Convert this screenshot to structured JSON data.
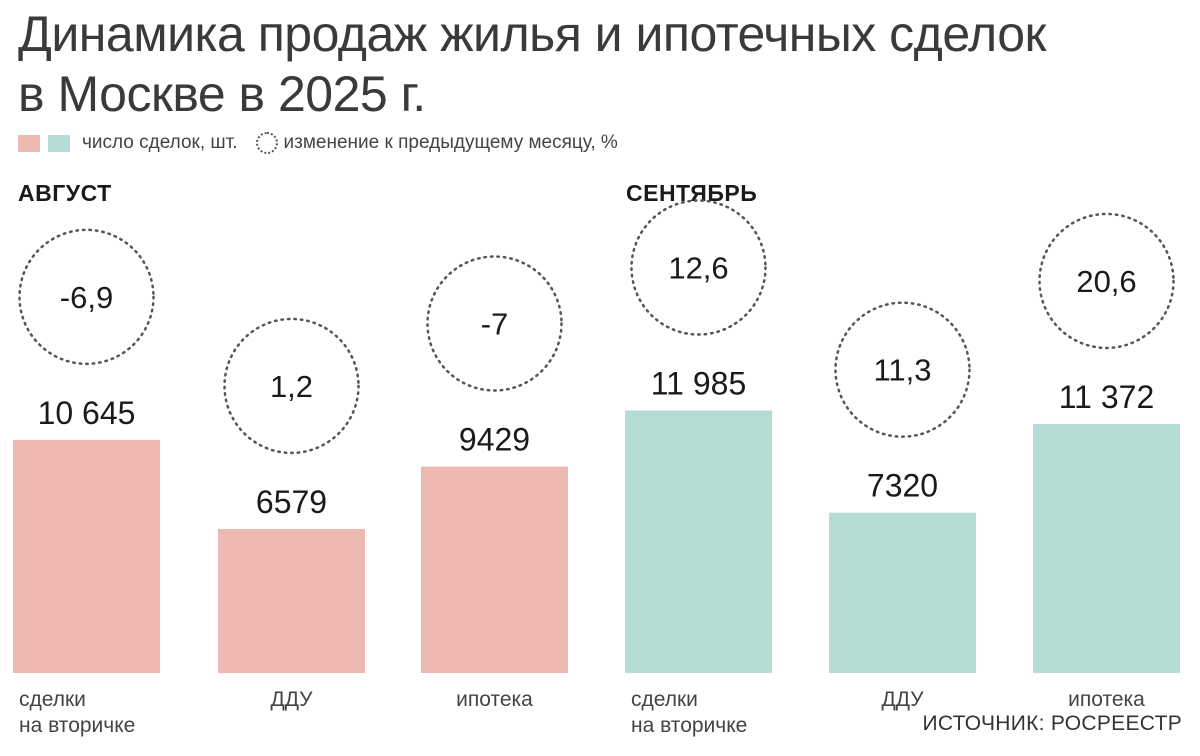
{
  "title": {
    "line1": "Динамика продаж жилья и ипотечных сделок",
    "line2": "в Москве в 2025 г."
  },
  "legend": {
    "count_label": "число сделок, шт.",
    "change_label": "изменение к предыдущему месяцу, %"
  },
  "source": "ИСТОЧНИК: РОСРЕЕСТР",
  "colors": {
    "august": "#eeb9b1",
    "september": "#b5dcd5",
    "circle_border": "#555555"
  },
  "chart_data": {
    "type": "bar",
    "groups": [
      {
        "name": "АВГУСТ",
        "color": "#eeb9b1",
        "bars": [
          {
            "category": "сделки на вторичке",
            "value": 10645,
            "value_label": "10 645",
            "change": -6.9,
            "change_label": "-6,9"
          },
          {
            "category": "ДДУ",
            "value": 6579,
            "value_label": "6579",
            "change": 1.2,
            "change_label": "1,2"
          },
          {
            "category": "ипотека",
            "value": 9429,
            "value_label": "9429",
            "change": -7,
            "change_label": "-7"
          }
        ]
      },
      {
        "name": "СЕНТЯБРЬ",
        "color": "#b5dcd5",
        "bars": [
          {
            "category": "сделки на вторичке",
            "value": 11985,
            "value_label": "11 985",
            "change": 12.6,
            "change_label": "12,6"
          },
          {
            "category": "ДДУ",
            "value": 7320,
            "value_label": "7320",
            "change": 11.3,
            "change_label": "11,3"
          },
          {
            "category": "ипотека",
            "value": 11372,
            "value_label": "11 372",
            "change": 20.6,
            "change_label": "20,6"
          }
        ]
      }
    ],
    "category_labels": [
      [
        "сделки",
        "на вторичке"
      ],
      [
        "ДДУ"
      ],
      [
        "ипотека"
      ],
      [
        "сделки",
        "на вторичке"
      ],
      [
        "ДДУ"
      ],
      [
        "ипотека"
      ]
    ]
  }
}
